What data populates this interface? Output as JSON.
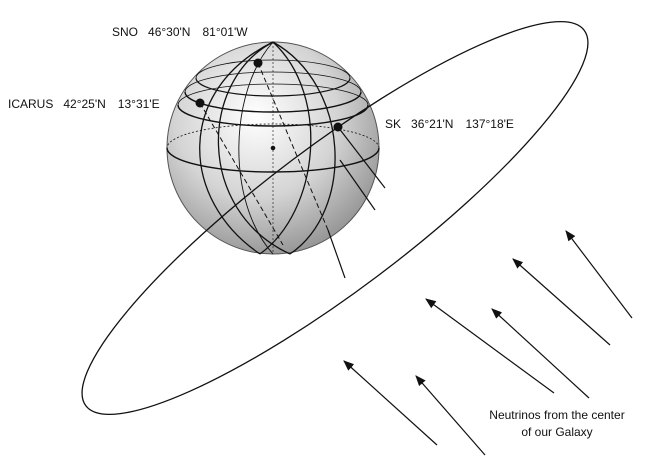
{
  "detectors": [
    {
      "name": "SNO",
      "latitude": "46°30'N",
      "longitude": "81°01'W"
    },
    {
      "name": "ICARUS",
      "latitude": "42°25'N",
      "longitude": "13°31'E"
    },
    {
      "name": "SK",
      "latitude": "36°21'N",
      "longitude": "137°18'E"
    }
  ],
  "caption": {
    "line1": "Neutrinos  from the center",
    "line2": "of  our Galaxy"
  }
}
